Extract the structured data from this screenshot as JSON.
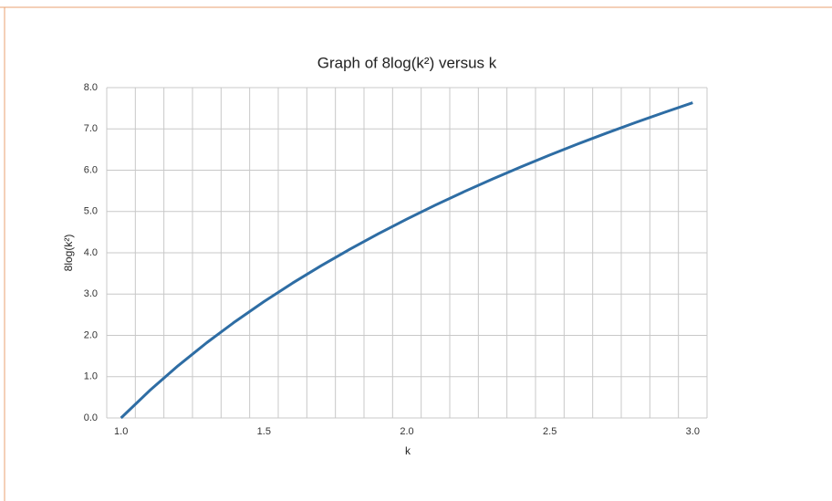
{
  "chart_data": {
    "type": "line",
    "title": "Graph of 8log(k²) versus k",
    "x_label": "k",
    "y_label": "8log(k²)",
    "x": [
      1.0,
      1.1,
      1.2,
      1.3,
      1.4,
      1.5,
      1.6,
      1.7,
      1.8,
      1.9,
      2.0,
      2.1,
      2.2,
      2.3,
      2.4,
      2.5,
      2.6,
      2.7,
      2.8,
      2.9,
      3.0
    ],
    "series": [
      {
        "name": "8log(k²)",
        "color": "#2e6da4",
        "values": [
          0,
          0.662,
          1.267,
          1.823,
          2.338,
          2.817,
          3.266,
          3.687,
          4.084,
          4.46,
          4.816,
          5.156,
          5.479,
          5.788,
          6.083,
          6.367,
          6.64,
          6.902,
          7.155,
          7.398,
          7.634
        ]
      }
    ],
    "xlim": [
      0.95,
      3.05
    ],
    "xticks": [
      {
        "value": 1.0,
        "label": "1.0"
      },
      {
        "value": 1.5,
        "label": "1.5"
      },
      {
        "value": 2.0,
        "label": "2.0"
      },
      {
        "value": 2.5,
        "label": "2.5"
      },
      {
        "value": 3.0,
        "label": "3.0"
      }
    ],
    "xgrid": [
      0.95,
      1.05,
      1.15,
      1.25,
      1.35,
      1.45,
      1.55,
      1.65,
      1.75,
      1.85,
      1.95,
      2.05,
      2.15,
      2.25,
      2.35,
      2.45,
      2.55,
      2.65,
      2.75,
      2.85,
      2.95,
      3.05
    ],
    "ylim": [
      0,
      8
    ],
    "yticks": [
      {
        "value": 0,
        "label": "0.0"
      },
      {
        "value": 1,
        "label": "1.0"
      },
      {
        "value": 2,
        "label": "2.0"
      },
      {
        "value": 3,
        "label": "3.0"
      },
      {
        "value": 4,
        "label": "4.0"
      },
      {
        "value": 5,
        "label": "5.0"
      },
      {
        "value": 6,
        "label": "6.0"
      },
      {
        "value": 7,
        "label": "7.0"
      },
      {
        "value": 8,
        "label": "8.0"
      }
    ],
    "grid": true
  }
}
